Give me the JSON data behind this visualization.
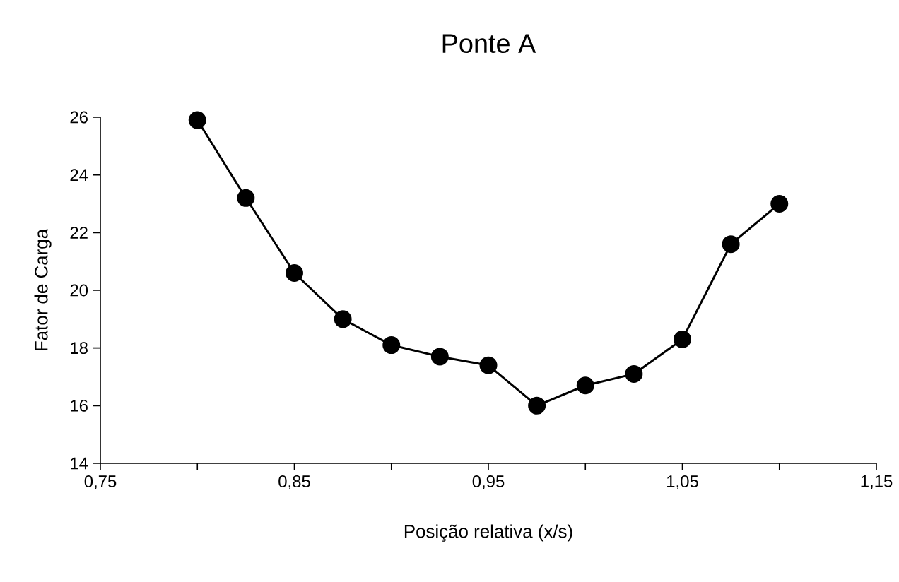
{
  "chart_data": {
    "type": "line",
    "title": "Ponte A",
    "xlabel": "Posição relativa (x/s)",
    "ylabel": "Fator de Carga",
    "x": [
      0.8,
      0.825,
      0.85,
      0.875,
      0.9,
      0.925,
      0.95,
      0.975,
      1.0,
      1.025,
      1.05,
      1.075,
      1.1
    ],
    "series": [
      {
        "color": "#000000",
        "values": [
          25.9,
          23.2,
          20.6,
          19.0,
          18.1,
          17.7,
          17.4,
          16.0,
          16.7,
          17.1,
          18.3,
          21.6,
          23.0
        ]
      }
    ],
    "xlim": [
      0.75,
      1.15
    ],
    "xticks": [
      {
        "value": 0.75,
        "label": "0,75"
      },
      {
        "value": 0.8,
        "label": null
      },
      {
        "value": 0.85,
        "label": "0,85"
      },
      {
        "value": 0.9,
        "label": null
      },
      {
        "value": 0.95,
        "label": "0,95"
      },
      {
        "value": 1.0,
        "label": null
      },
      {
        "value": 1.05,
        "label": "1,05"
      },
      {
        "value": 1.1,
        "label": null
      },
      {
        "value": 1.15,
        "label": "1,15"
      }
    ],
    "ylim": [
      14,
      26
    ],
    "yticks": [
      14,
      16,
      18,
      20,
      22,
      24,
      26
    ],
    "grid": false,
    "marker": "circle",
    "line_style": "solid"
  }
}
